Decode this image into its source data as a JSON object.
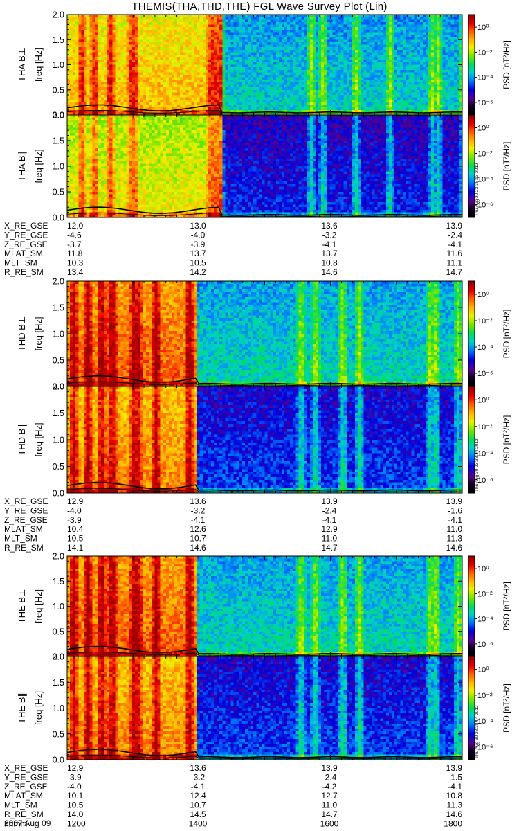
{
  "title": "THEMIS(THA,THD,THE) FGL Wave Survey Plot (Lin)",
  "date_label": "2007 Aug 09",
  "colorbar": {
    "label": "PSD [nT²/Hz]",
    "ticks": [
      "10⁰",
      "10⁻²",
      "10⁻⁴",
      "10⁻⁶"
    ],
    "tick_exponents": [
      0,
      -2,
      -4,
      -6
    ],
    "range_exponent": [
      -7,
      1
    ]
  },
  "chart_data": [
    {
      "type": "heatmap",
      "probe": "THA",
      "component": "B⊥",
      "ylabel": "freq [Hz]",
      "panel_label": "THA B⊥",
      "ylim": [
        0,
        2.0
      ],
      "yticks": [
        "0.0",
        "0.5",
        "1.0",
        "1.5",
        "2.0"
      ],
      "plot_timestamp": "",
      "xlim_hhmm": [
        1200,
        1800
      ],
      "regime_change_hhmm": 1420,
      "bright_bands_hhmm": [
        1212,
        1224,
        1238,
        1258,
        1300,
        1410,
        1415,
        1418,
        1541,
        1552,
        1582,
        1653,
        1692,
        1737,
        1760
      ],
      "high_level_exp": -1.0,
      "low_level_exp": -3.5
    },
    {
      "type": "heatmap",
      "probe": "THA",
      "component": "B∥",
      "ylabel": "freq [Hz]",
      "panel_label": "THA B∥",
      "ylim": [
        0,
        2.0
      ],
      "yticks": [
        "0.0",
        "0.5",
        "1.0",
        "1.5",
        "2.0"
      ],
      "plot_timestamp": "Thu Aug 30 23:38:13 2012",
      "xlim_hhmm": [
        1200,
        1800
      ],
      "regime_change_hhmm": 1420,
      "bright_bands_hhmm": [
        1212,
        1224,
        1238,
        1258,
        1300,
        1410,
        1415,
        1418,
        1541,
        1552,
        1582,
        1653,
        1692,
        1737,
        1760
      ],
      "high_level_exp": -1.5,
      "low_level_exp": -4.8
    },
    {
      "type": "heatmap",
      "probe": "THD",
      "component": "B⊥",
      "ylabel": "freq [Hz]",
      "panel_label": "THD B⊥",
      "ylim": [
        0,
        2.0
      ],
      "yticks": [
        "0.0",
        "0.5",
        "1.0",
        "1.5",
        "2.0"
      ],
      "plot_timestamp": "",
      "xlim_hhmm": [
        1200,
        1800
      ],
      "regime_change_hhmm": 1357,
      "bright_bands_hhmm": [
        1205,
        1218,
        1230,
        1240,
        1263,
        1280,
        1300,
        1320,
        1350,
        1532,
        1545,
        1610,
        1625,
        1690,
        1735,
        1755
      ],
      "high_level_exp": -0.3,
      "low_level_exp": -3.4
    },
    {
      "type": "heatmap",
      "probe": "THD",
      "component": "B∥",
      "ylabel": "freq [Hz]",
      "panel_label": "THD B∥",
      "ylim": [
        0,
        2.0
      ],
      "yticks": [
        "0.0",
        "0.5",
        "1.0",
        "1.5",
        "2.0"
      ],
      "plot_timestamp": "Thu Aug 30 23:38:14 2012",
      "xlim_hhmm": [
        1200,
        1800
      ],
      "regime_change_hhmm": 1357,
      "bright_bands_hhmm": [
        1205,
        1218,
        1230,
        1240,
        1263,
        1280,
        1300,
        1320,
        1350,
        1532,
        1545,
        1610,
        1625,
        1690,
        1735,
        1755
      ],
      "high_level_exp": -0.6,
      "low_level_exp": -4.6
    },
    {
      "type": "heatmap",
      "probe": "THE",
      "component": "B⊥",
      "ylabel": "freq [Hz]",
      "panel_label": "THE B⊥",
      "ylim": [
        0,
        2.0
      ],
      "yticks": [
        "0.0",
        "0.5",
        "1.0",
        "1.5",
        "2.0"
      ],
      "plot_timestamp": "",
      "xlim_hhmm": [
        1200,
        1800
      ],
      "regime_change_hhmm": 1357,
      "bright_bands_hhmm": [
        1205,
        1218,
        1230,
        1240,
        1263,
        1280,
        1300,
        1320,
        1350,
        1532,
        1545,
        1610,
        1625,
        1690,
        1735,
        1755
      ],
      "high_level_exp": -0.3,
      "low_level_exp": -3.4
    },
    {
      "type": "heatmap",
      "probe": "THE",
      "component": "B∥",
      "ylabel": "freq [Hz]",
      "panel_label": "THE B∥",
      "ylim": [
        0,
        2.0
      ],
      "yticks": [
        "0.0",
        "0.5",
        "1.0",
        "1.5",
        "2.0"
      ],
      "plot_timestamp": "Thu Aug 30 23:38:14 2012",
      "xlim_hhmm": [
        1200,
        1800
      ],
      "regime_change_hhmm": 1357,
      "bright_bands_hhmm": [
        1205,
        1218,
        1230,
        1240,
        1263,
        1280,
        1300,
        1320,
        1350,
        1532,
        1545,
        1610,
        1625,
        1690,
        1735,
        1755
      ],
      "high_level_exp": -0.6,
      "low_level_exp": -4.6
    }
  ],
  "ephemeris": [
    {
      "probe": "THA",
      "rows": [
        {
          "label": "X_RE_GSE",
          "values": [
            "12.0",
            "13.0",
            "13.6",
            "13.9"
          ]
        },
        {
          "label": "Y_RE_GSE",
          "values": [
            "-4.6",
            "-4.0",
            "-3.2",
            "-2.4"
          ]
        },
        {
          "label": "Z_RE_GSE",
          "values": [
            "-3.7",
            "-3.9",
            "-4.1",
            "-4.1"
          ]
        },
        {
          "label": "MLAT_SM",
          "values": [
            "11.8",
            "13.7",
            "13.7",
            "11.6"
          ]
        },
        {
          "label": "MLT_SM",
          "values": [
            "10.3",
            "10.5",
            "10.8",
            "11.1"
          ]
        },
        {
          "label": "R_RE_SM",
          "values": [
            "13.4",
            "14.2",
            "14.6",
            "14.7"
          ]
        }
      ]
    },
    {
      "probe": "THD",
      "rows": [
        {
          "label": "X_RE_GSE",
          "values": [
            "12.9",
            "13.6",
            "13.9",
            "13.9"
          ]
        },
        {
          "label": "Y_RE_GSE",
          "values": [
            "-4.0",
            "-3.2",
            "-2.4",
            "-1.6"
          ]
        },
        {
          "label": "Z_RE_GSE",
          "values": [
            "-3.9",
            "-4.1",
            "-4.1",
            "-4.1"
          ]
        },
        {
          "label": "MLAT_SM",
          "values": [
            "10.4",
            "12.6",
            "12.9",
            "11.0"
          ]
        },
        {
          "label": "MLT_SM",
          "values": [
            "10.5",
            "10.7",
            "11.0",
            "11.3"
          ]
        },
        {
          "label": "R_RE_SM",
          "values": [
            "14.1",
            "14.6",
            "14.7",
            "14.6"
          ]
        }
      ]
    },
    {
      "probe": "THE",
      "rows": [
        {
          "label": "X_RE_GSE",
          "values": [
            "12.9",
            "13.6",
            "13.9",
            "13.9"
          ]
        },
        {
          "label": "Y_RE_GSE",
          "values": [
            "-3.9",
            "-3.2",
            "-2.4",
            "-1.5"
          ]
        },
        {
          "label": "Z_RE_GSE",
          "values": [
            "-4.0",
            "-4.1",
            "-4.2",
            "-4.1"
          ]
        },
        {
          "label": "MLAT_SM",
          "values": [
            "10.1",
            "12.4",
            "12.7",
            "10.8"
          ]
        },
        {
          "label": "MLT_SM",
          "values": [
            "10.5",
            "10.7",
            "11.0",
            "11.3"
          ]
        },
        {
          "label": "R_RE_SM",
          "values": [
            "14.0",
            "14.5",
            "14.7",
            "14.6"
          ]
        },
        {
          "label": "hhmm",
          "values": [
            "1200",
            "1400",
            "1600",
            "1800"
          ]
        }
      ]
    }
  ]
}
